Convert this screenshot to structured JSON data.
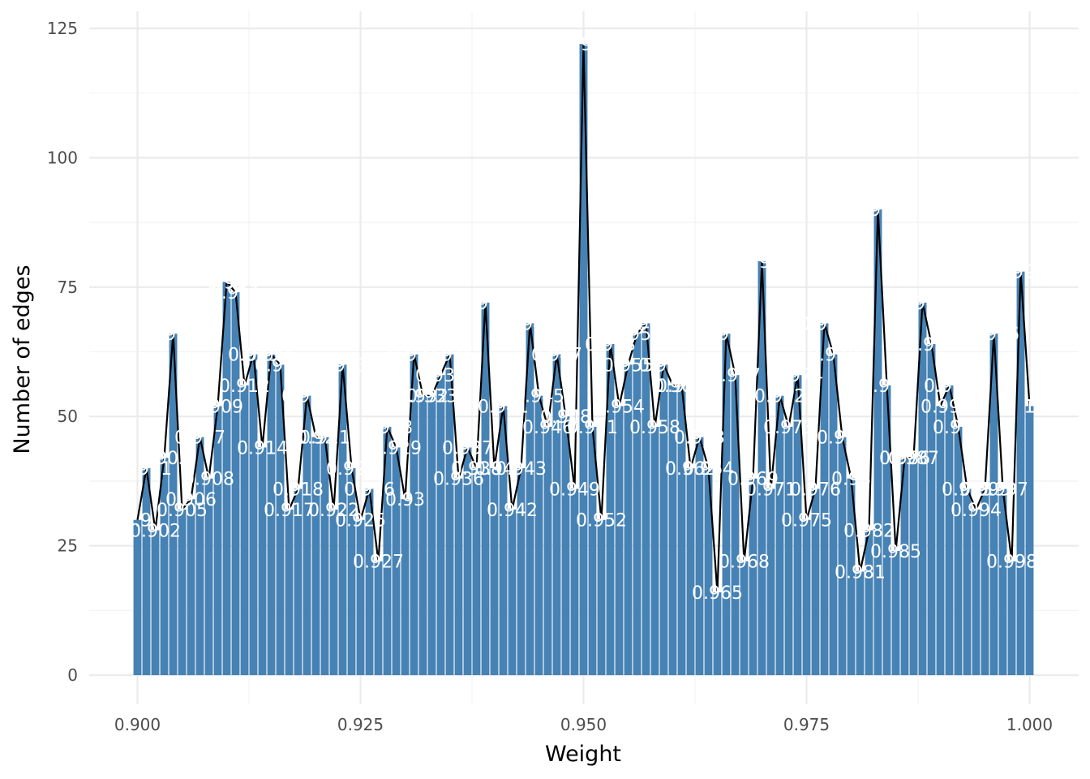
{
  "chart_data": {
    "type": "bar",
    "title": "",
    "xlabel": "Weight",
    "ylabel": "Number of edges",
    "xlim": [
      0.8975,
      1.0025
    ],
    "ylim": [
      0,
      125
    ],
    "x_ticks": [
      "0.900",
      "0.925",
      "0.950",
      "0.975",
      "1.000"
    ],
    "x_tick_values": [
      0.9,
      0.925,
      0.95,
      0.975,
      1.0
    ],
    "y_ticks": [
      "0",
      "25",
      "50",
      "75",
      "100",
      "125"
    ],
    "y_tick_values": [
      0,
      25,
      50,
      75,
      100,
      125
    ],
    "grid": true,
    "bar_color": "#4682b4",
    "line_color": "#000000",
    "label_color": "#ffffff",
    "x": [
      0.9,
      0.901,
      0.902,
      0.903,
      0.904,
      0.905,
      0.906,
      0.907,
      0.908,
      0.909,
      0.91,
      0.911,
      0.912,
      0.913,
      0.914,
      0.915,
      0.916,
      0.917,
      0.918,
      0.919,
      0.92,
      0.921,
      0.922,
      0.923,
      0.924,
      0.925,
      0.926,
      0.927,
      0.928,
      0.929,
      0.93,
      0.931,
      0.932,
      0.933,
      0.934,
      0.935,
      0.936,
      0.937,
      0.938,
      0.939,
      0.94,
      0.941,
      0.942,
      0.943,
      0.944,
      0.945,
      0.946,
      0.947,
      0.948,
      0.949,
      0.95,
      0.951,
      0.952,
      0.953,
      0.954,
      0.955,
      0.956,
      0.957,
      0.958,
      0.959,
      0.96,
      0.961,
      0.962,
      0.963,
      0.964,
      0.965,
      0.966,
      0.967,
      0.968,
      0.969,
      0.97,
      0.971,
      0.972,
      0.973,
      0.974,
      0.975,
      0.976,
      0.977,
      0.978,
      0.979,
      0.98,
      0.981,
      0.982,
      0.983,
      0.984,
      0.985,
      0.986,
      0.987,
      0.988,
      0.989,
      0.99,
      0.991,
      0.992,
      0.993,
      0.994,
      0.995,
      0.996,
      0.997,
      0.998,
      0.999,
      1.0
    ],
    "values": [
      30,
      40,
      28,
      42,
      66,
      32,
      34,
      46,
      38,
      52,
      76,
      74,
      56,
      62,
      44,
      62,
      60,
      32,
      36,
      54,
      46,
      46,
      32,
      60,
      40,
      30,
      36,
      22,
      48,
      44,
      34,
      62,
      54,
      54,
      58,
      62,
      38,
      44,
      40,
      72,
      40,
      52,
      32,
      40,
      68,
      54,
      48,
      62,
      50,
      36,
      122,
      48,
      30,
      64,
      52,
      60,
      66,
      68,
      48,
      60,
      56,
      56,
      40,
      46,
      40,
      16,
      66,
      58,
      22,
      38,
      80,
      36,
      54,
      48,
      58,
      30,
      36,
      68,
      62,
      46,
      38,
      20,
      28,
      90,
      56,
      24,
      42,
      42,
      72,
      64,
      52,
      56,
      48,
      36,
      32,
      36,
      66,
      36,
      22,
      78,
      52
    ],
    "labels": [
      "0.9",
      "0.901",
      "0.902",
      "0.903",
      "0.904",
      "0.905",
      "0.906",
      "0.907",
      "0.908",
      "0.909",
      "0.91",
      "0.911",
      "0.912",
      "0.913",
      "0.914",
      "0.915",
      "0.916",
      "0.917",
      "0.918",
      "0.919",
      "0.92",
      "0.921",
      "0.922",
      "0.923",
      "0.924",
      "0.925",
      "0.926",
      "0.927",
      "0.928",
      "0.929",
      "0.93",
      "0.931",
      "0.932",
      "0.933",
      "0.934",
      "0.935",
      "0.936",
      "0.937",
      "0.938",
      "0.939",
      "0.94",
      "0.941",
      "0.942",
      "0.943",
      "0.944",
      "0.945",
      "0.946",
      "0.947",
      "0.948",
      "0.949",
      "0.95",
      "0.951",
      "0.952",
      "0.953",
      "0.954",
      "0.955",
      "0.956",
      "0.957",
      "0.958",
      "0.959",
      "0.96",
      "0.961",
      "0.962",
      "0.963",
      "0.964",
      "0.965",
      "0.966",
      "0.967",
      "0.968",
      "0.969",
      "0.97",
      "0.971",
      "0.972",
      "0.973",
      "0.974",
      "0.975",
      "0.976",
      "0.977",
      "0.978",
      "0.979",
      "0.98",
      "0.981",
      "0.982",
      "0.983",
      "0.984",
      "0.985",
      "0.986",
      "0.987",
      "0.988",
      "0.989",
      "0.99",
      "0.991",
      "0.992",
      "0.993",
      "0.994",
      "0.995",
      "0.996",
      "0.997",
      "0.998",
      "0.999",
      "1"
    ]
  }
}
